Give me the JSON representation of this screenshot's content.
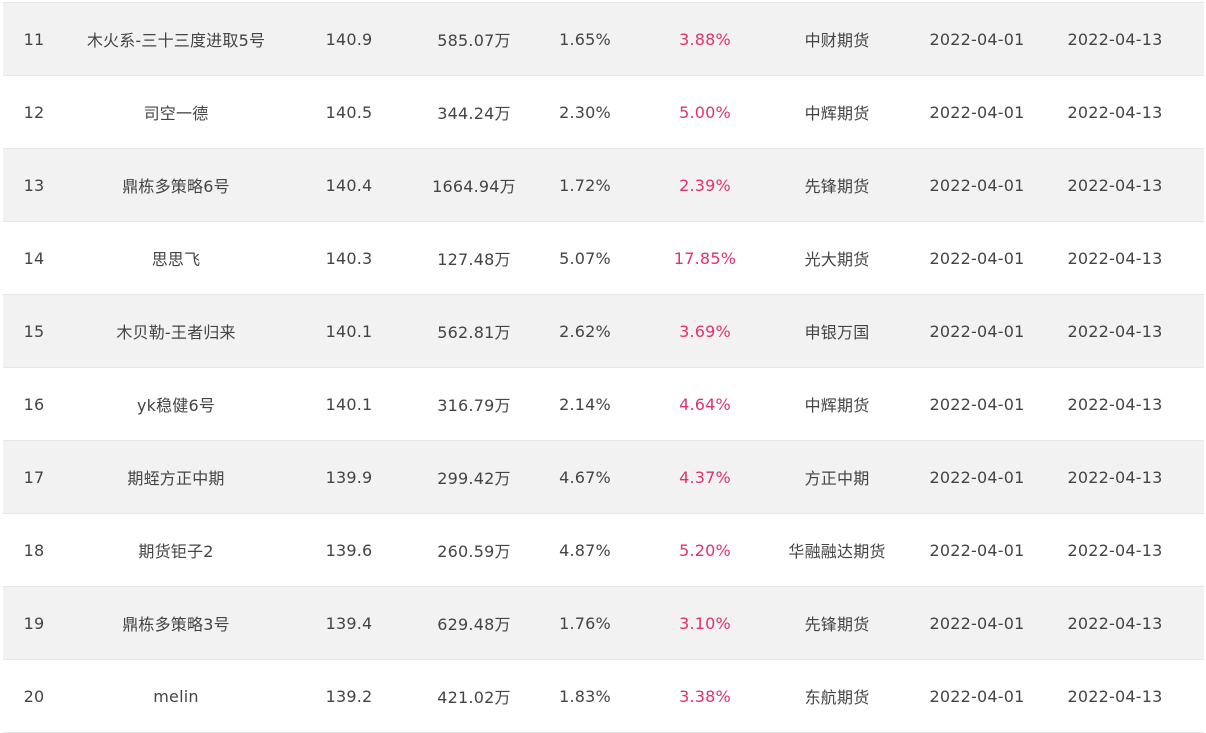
{
  "rows": [
    {
      "rank": "11",
      "name": "木火系-三十三度进取5号",
      "value": "140.9",
      "amount": "585.07万",
      "pct1": "1.65%",
      "pct2": "3.88%",
      "broker": "中财期货",
      "date1": "2022-04-01",
      "date2": "2022-04-13"
    },
    {
      "rank": "12",
      "name": "司空一德",
      "value": "140.5",
      "amount": "344.24万",
      "pct1": "2.30%",
      "pct2": "5.00%",
      "broker": "中辉期货",
      "date1": "2022-04-01",
      "date2": "2022-04-13"
    },
    {
      "rank": "13",
      "name": "鼎栋多策略6号",
      "value": "140.4",
      "amount": "1664.94万",
      "pct1": "1.72%",
      "pct2": "2.39%",
      "broker": "先锋期货",
      "date1": "2022-04-01",
      "date2": "2022-04-13"
    },
    {
      "rank": "14",
      "name": "思思飞",
      "value": "140.3",
      "amount": "127.48万",
      "pct1": "5.07%",
      "pct2": "17.85%",
      "broker": "光大期货",
      "date1": "2022-04-01",
      "date2": "2022-04-13"
    },
    {
      "rank": "15",
      "name": "木贝勒-王者归来",
      "value": "140.1",
      "amount": "562.81万",
      "pct1": "2.62%",
      "pct2": "3.69%",
      "broker": "申银万国",
      "date1": "2022-04-01",
      "date2": "2022-04-13"
    },
    {
      "rank": "16",
      "name": "yk稳健6号",
      "value": "140.1",
      "amount": "316.79万",
      "pct1": "2.14%",
      "pct2": "4.64%",
      "broker": "中辉期货",
      "date1": "2022-04-01",
      "date2": "2022-04-13"
    },
    {
      "rank": "17",
      "name": "期蛭方正中期",
      "value": "139.9",
      "amount": "299.42万",
      "pct1": "4.67%",
      "pct2": "4.37%",
      "broker": "方正中期",
      "date1": "2022-04-01",
      "date2": "2022-04-13"
    },
    {
      "rank": "18",
      "name": "期货钜子2",
      "value": "139.6",
      "amount": "260.59万",
      "pct1": "4.87%",
      "pct2": "5.20%",
      "broker": "华融融达期货",
      "date1": "2022-04-01",
      "date2": "2022-04-13"
    },
    {
      "rank": "19",
      "name": "鼎栋多策略3号",
      "value": "139.4",
      "amount": "629.48万",
      "pct1": "1.76%",
      "pct2": "3.10%",
      "broker": "先锋期货",
      "date1": "2022-04-01",
      "date2": "2022-04-13"
    },
    {
      "rank": "20",
      "name": "melin",
      "value": "139.2",
      "amount": "421.02万",
      "pct1": "1.83%",
      "pct2": "3.38%",
      "broker": "东航期货",
      "date1": "2022-04-01",
      "date2": "2022-04-13"
    }
  ],
  "colors": {
    "shaded_row": "#f2f2f2",
    "plain_row": "#ffffff",
    "highlight_pct": "#e0326e",
    "text": "#444444"
  }
}
